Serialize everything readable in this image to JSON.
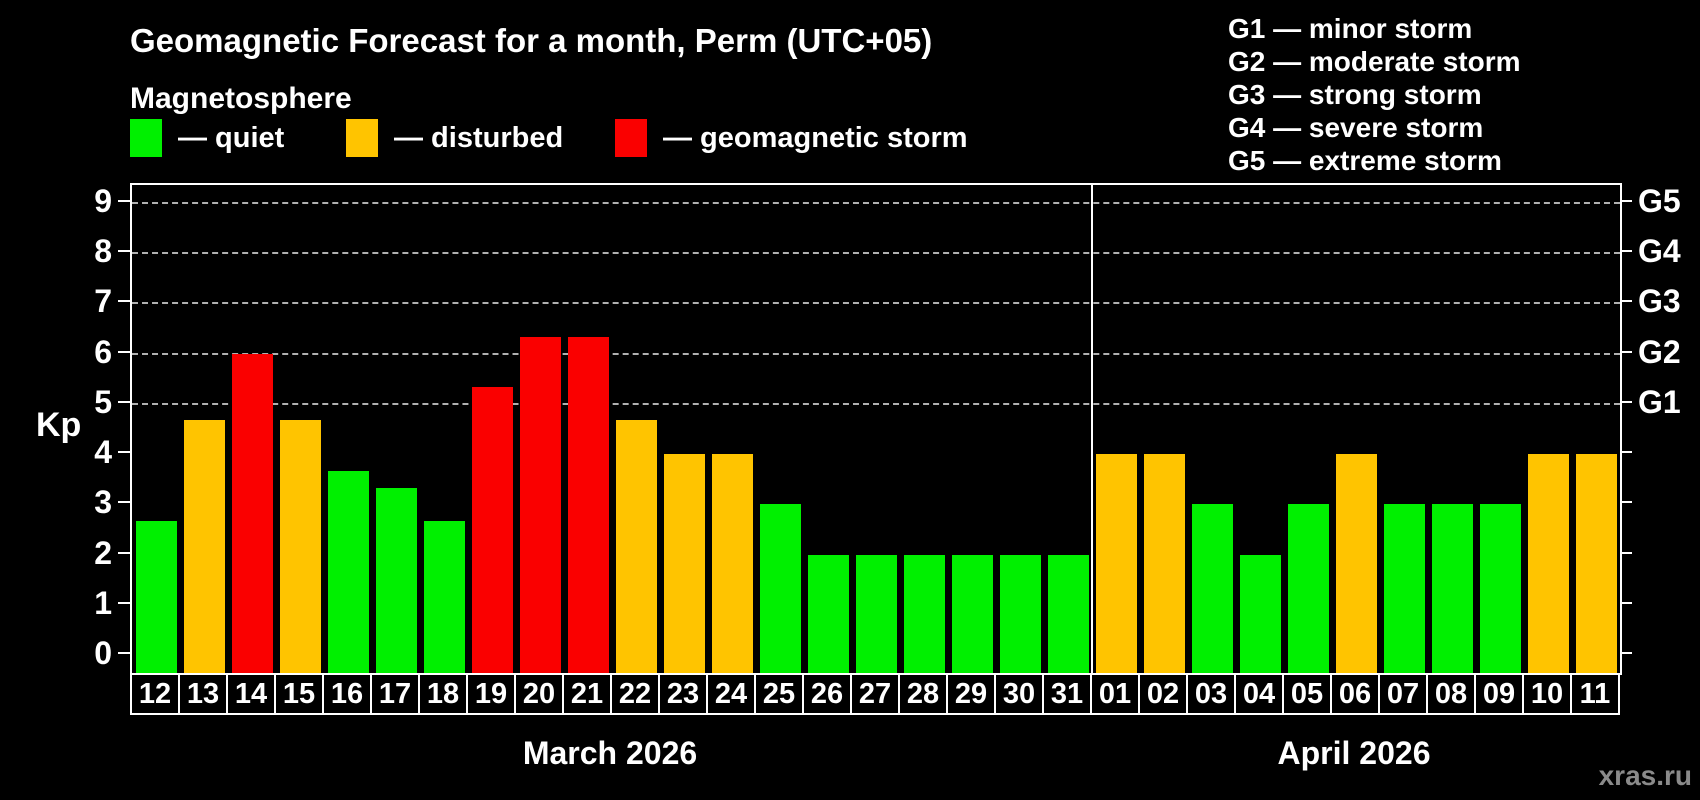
{
  "title": "Geomagnetic Forecast for a month, Perm (UTC+05)",
  "subtitle": "Magnetosphere",
  "legend": {
    "items": [
      {
        "key": "quiet",
        "label": "— quiet",
        "color": "#00f000"
      },
      {
        "key": "disturbed",
        "label": "— disturbed",
        "color": "#ffc400"
      },
      {
        "key": "storm",
        "label": "— geomagnetic storm",
        "color": "#fa0000"
      }
    ]
  },
  "storm_scale": {
    "lines": [
      "G1 — minor storm",
      "G2 — moderate storm",
      "G3 — strong storm",
      "G4 — severe storm",
      "G5 — extreme storm"
    ]
  },
  "axes": {
    "y_label": "Kp",
    "y_ticks": [
      0,
      1,
      2,
      3,
      4,
      5,
      6,
      7,
      8,
      9
    ],
    "grid_levels": [
      5,
      6,
      7,
      8,
      9
    ],
    "right_labels": [
      {
        "text": "G1",
        "kp": 5
      },
      {
        "text": "G2",
        "kp": 6
      },
      {
        "text": "G3",
        "kp": 7
      },
      {
        "text": "G4",
        "kp": 8
      },
      {
        "text": "G5",
        "kp": 9
      }
    ]
  },
  "watermark": "xras.ru",
  "chart_data": {
    "type": "bar",
    "title": "Geomagnetic Forecast for a month, Perm (UTC+05)",
    "xlabel": "",
    "ylabel": "Kp",
    "ylim": [
      0,
      9.35
    ],
    "grid": "dashed horizontal lines at Kp 5,6,7,8,9 only",
    "legend_position": "top-left",
    "status_colors": {
      "quiet": "#00f000",
      "disturbed": "#ffc400",
      "storm": "#fa0000"
    },
    "categories": [
      "12",
      "13",
      "14",
      "15",
      "16",
      "17",
      "18",
      "19",
      "20",
      "21",
      "22",
      "23",
      "24",
      "25",
      "26",
      "27",
      "28",
      "29",
      "30",
      "31",
      "01",
      "02",
      "03",
      "04",
      "05",
      "06",
      "07",
      "08",
      "09",
      "10",
      "11"
    ],
    "values": [
      2.67,
      4.67,
      6,
      4.67,
      3.67,
      3.33,
      2.67,
      5.33,
      6.33,
      6.33,
      4.67,
      4,
      4,
      3,
      2,
      2,
      2,
      2,
      2,
      2,
      4,
      4,
      3,
      2,
      3,
      4,
      3,
      3,
      3,
      4,
      4
    ],
    "statuses": [
      "quiet",
      "disturbed",
      "storm",
      "disturbed",
      "quiet",
      "quiet",
      "quiet",
      "storm",
      "storm",
      "storm",
      "disturbed",
      "disturbed",
      "disturbed",
      "quiet",
      "quiet",
      "quiet",
      "quiet",
      "quiet",
      "quiet",
      "quiet",
      "disturbed",
      "disturbed",
      "quiet",
      "quiet",
      "quiet",
      "disturbed",
      "quiet",
      "quiet",
      "quiet",
      "disturbed",
      "disturbed"
    ],
    "months": [
      {
        "label": "March 2026",
        "days": [
          {
            "day": "12",
            "kp": 2.67,
            "status": "quiet"
          },
          {
            "day": "13",
            "kp": 4.67,
            "status": "disturbed"
          },
          {
            "day": "14",
            "kp": 6,
            "status": "storm"
          },
          {
            "day": "15",
            "kp": 4.67,
            "status": "disturbed"
          },
          {
            "day": "16",
            "kp": 3.67,
            "status": "quiet"
          },
          {
            "day": "17",
            "kp": 3.33,
            "status": "quiet"
          },
          {
            "day": "18",
            "kp": 2.67,
            "status": "quiet"
          },
          {
            "day": "19",
            "kp": 5.33,
            "status": "storm"
          },
          {
            "day": "20",
            "kp": 6.33,
            "status": "storm"
          },
          {
            "day": "21",
            "kp": 6.33,
            "status": "storm"
          },
          {
            "day": "22",
            "kp": 4.67,
            "status": "disturbed"
          },
          {
            "day": "23",
            "kp": 4,
            "status": "disturbed"
          },
          {
            "day": "24",
            "kp": 4,
            "status": "disturbed"
          },
          {
            "day": "25",
            "kp": 3,
            "status": "quiet"
          },
          {
            "day": "26",
            "kp": 2,
            "status": "quiet"
          },
          {
            "day": "27",
            "kp": 2,
            "status": "quiet"
          },
          {
            "day": "28",
            "kp": 2,
            "status": "quiet"
          },
          {
            "day": "29",
            "kp": 2,
            "status": "quiet"
          },
          {
            "day": "30",
            "kp": 2,
            "status": "quiet"
          },
          {
            "day": "31",
            "kp": 2,
            "status": "quiet"
          }
        ]
      },
      {
        "label": "April 2026",
        "days": [
          {
            "day": "01",
            "kp": 4,
            "status": "disturbed"
          },
          {
            "day": "02",
            "kp": 4,
            "status": "disturbed"
          },
          {
            "day": "03",
            "kp": 3,
            "status": "quiet"
          },
          {
            "day": "04",
            "kp": 2,
            "status": "quiet"
          },
          {
            "day": "05",
            "kp": 3,
            "status": "quiet"
          },
          {
            "day": "06",
            "kp": 4,
            "status": "disturbed"
          },
          {
            "day": "07",
            "kp": 3,
            "status": "quiet"
          },
          {
            "day": "08",
            "kp": 3,
            "status": "quiet"
          },
          {
            "day": "09",
            "kp": 3,
            "status": "quiet"
          },
          {
            "day": "10",
            "kp": 4,
            "status": "disturbed"
          },
          {
            "day": "11",
            "kp": 4,
            "status": "disturbed"
          }
        ]
      }
    ]
  }
}
